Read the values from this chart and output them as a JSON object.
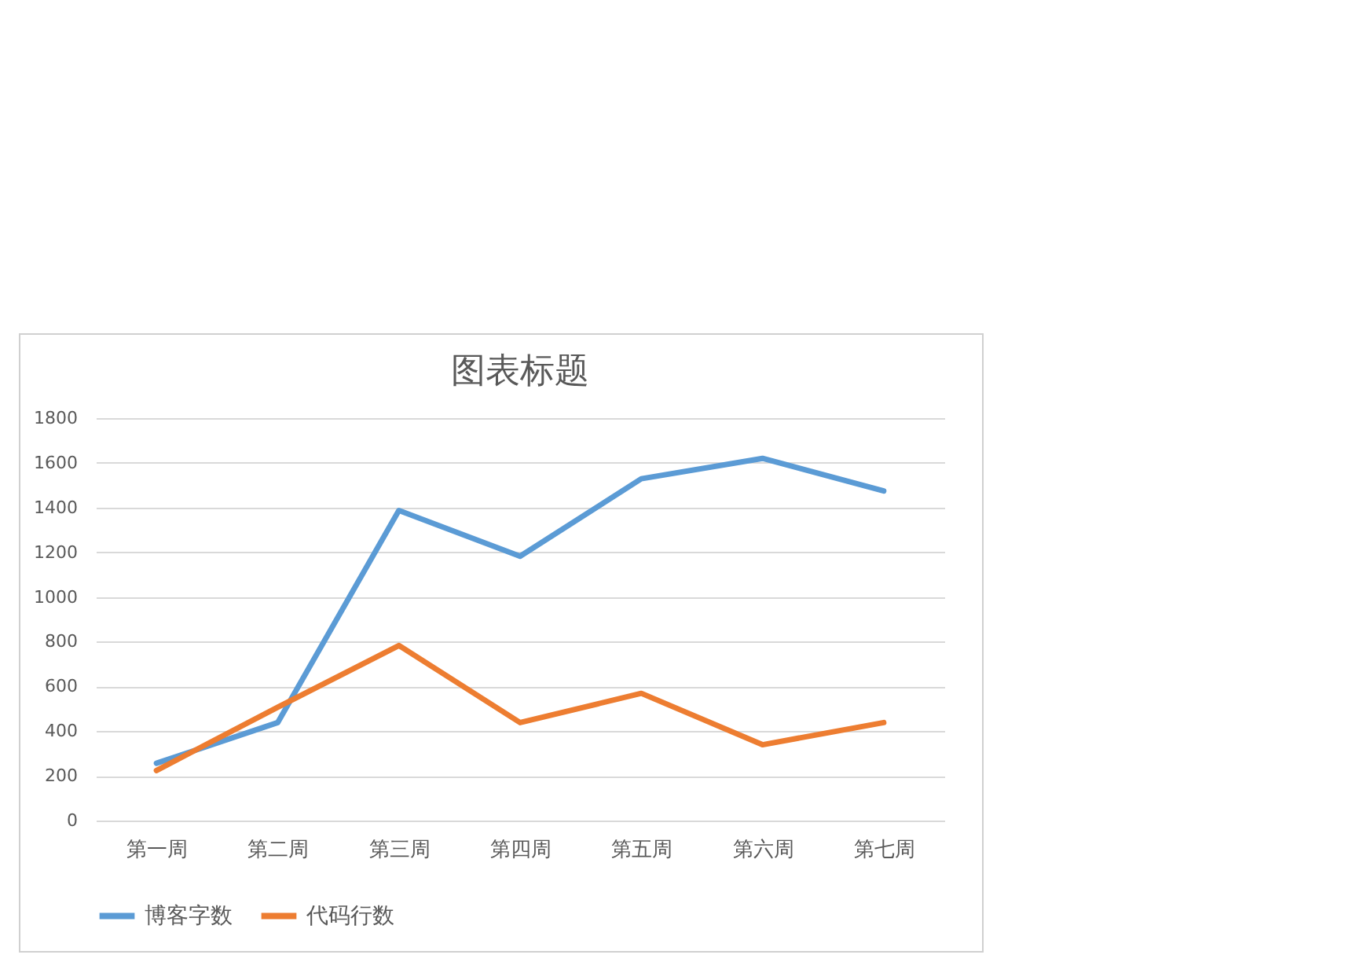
{
  "chart_data": {
    "type": "line",
    "title": "图表标题",
    "categories": [
      "第一周",
      "第二周",
      "第三周",
      "第四周",
      "第五周",
      "第六周",
      "第七周"
    ],
    "series": [
      {
        "name": "博客字数",
        "color": "#5b9bd5",
        "values": [
          256,
          438,
          1387,
          1182,
          1529,
          1620,
          1474
        ]
      },
      {
        "name": "代码行数",
        "color": "#ed7d31",
        "values": [
          224,
          507,
          783,
          438,
          569,
          339,
          438
        ]
      }
    ],
    "ylim": [
      0,
      1800
    ],
    "yticks": [
      0,
      200,
      400,
      600,
      800,
      1000,
      1200,
      1400,
      1600,
      1800
    ],
    "grid": "y",
    "legend": "bottom",
    "marker": "none",
    "line_style": "solid"
  }
}
